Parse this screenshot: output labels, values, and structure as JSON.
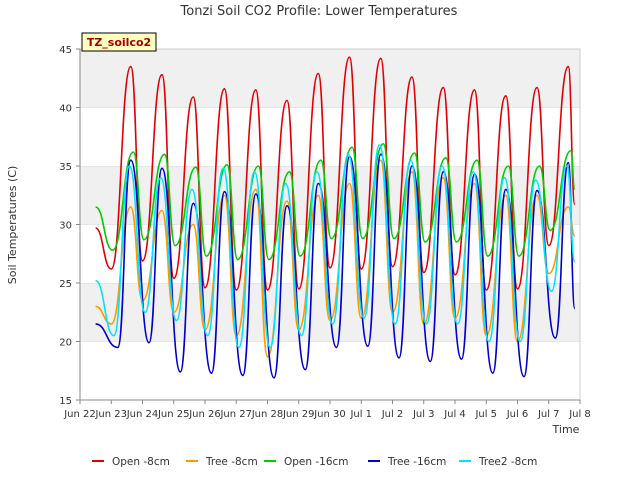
{
  "chart_data": {
    "type": "line",
    "title": "Tonzi Soil CO2 Profile: Lower Temperatures",
    "xlabel": "Time",
    "ylabel": "Soil Temperatures (C)",
    "site_label": "TZ_soilco2",
    "ylim": [
      15,
      45
    ],
    "xlim": [
      "Jun 22",
      "Jul 8"
    ],
    "yticks": [
      15,
      20,
      25,
      30,
      35,
      40,
      45
    ],
    "xticks": [
      "Jun 23",
      "Jun 24",
      "Jun 25",
      "Jun 26",
      "Jun 27",
      "Jun 28",
      "Jun 29",
      "Jun 30",
      "Jul 1",
      "Jul 2",
      "Jul 3",
      "Jul 4",
      "Jul 5",
      "Jul 6",
      "Jul 7",
      "Jul 8"
    ],
    "x_start_label": "Jun 22",
    "grid": "horizontal alternating bands",
    "legend_position": "bottom",
    "series": [
      {
        "name": "Open -8cm",
        "color": "#e00000",
        "x": [
          "2023-06-22 12:00",
          "2023-06-23 00:00",
          "2023-06-23 15:00",
          "2023-06-24 00:00",
          "2023-06-24 15:00",
          "2023-06-25 00:00",
          "2023-06-25 15:00",
          "2023-06-26 00:00",
          "2023-06-26 15:00",
          "2023-06-27 00:00",
          "2023-06-27 15:00",
          "2023-06-28 00:00",
          "2023-06-28 15:00",
          "2023-06-29 00:00",
          "2023-06-29 15:00",
          "2023-06-30 00:00",
          "2023-06-30 15:00",
          "2023-07-01 00:00",
          "2023-07-01 15:00",
          "2023-07-02 00:00",
          "2023-07-02 15:00",
          "2023-07-03 00:00",
          "2023-07-03 15:00",
          "2023-07-04 00:00",
          "2023-07-04 15:00",
          "2023-07-05 00:00",
          "2023-07-05 15:00",
          "2023-07-06 00:00",
          "2023-07-06 15:00",
          "2023-07-07 00:00",
          "2023-07-07 15:00",
          "2023-07-07 20:00"
        ],
        "y": [
          29.7,
          26.2,
          43.5,
          26.9,
          42.8,
          25.4,
          40.9,
          24.6,
          41.6,
          24.4,
          41.5,
          24.4,
          40.6,
          24.5,
          42.9,
          26.3,
          44.3,
          26.2,
          44.2,
          26.4,
          42.6,
          25.9,
          41.7,
          25.7,
          41.5,
          24.4,
          41.0,
          24.5,
          41.7,
          28.2,
          43.5,
          31.7
        ]
      },
      {
        "name": "Tree -8cm",
        "color": "#ff9900",
        "x": [
          "2023-06-22 12:00",
          "2023-06-23 00:00",
          "2023-06-23 15:00",
          "2023-06-24 00:00",
          "2023-06-24 15:00",
          "2023-06-25 00:00",
          "2023-06-25 15:00",
          "2023-06-26 00:00",
          "2023-06-26 15:00",
          "2023-06-27 00:00",
          "2023-06-27 15:00",
          "2023-06-28 00:00",
          "2023-06-28 15:00",
          "2023-06-29 00:00",
          "2023-06-29 15:00",
          "2023-06-30 00:00",
          "2023-06-30 15:00",
          "2023-07-01 00:00",
          "2023-07-01 15:00",
          "2023-07-02 00:00",
          "2023-07-02 15:00",
          "2023-07-03 00:00",
          "2023-07-03 15:00",
          "2023-07-04 00:00",
          "2023-07-04 15:00",
          "2023-07-05 00:00",
          "2023-07-05 15:00",
          "2023-07-06 00:00",
          "2023-07-06 15:00",
          "2023-07-07 00:00",
          "2023-07-07 15:00",
          "2023-07-07 20:00"
        ],
        "y": [
          23.0,
          21.5,
          31.5,
          23.5,
          31.2,
          22.5,
          30.0,
          21.0,
          32.5,
          20.5,
          33.0,
          18.7,
          32.0,
          21.0,
          32.5,
          21.8,
          33.5,
          22.0,
          35.5,
          22.5,
          34.5,
          21.5,
          34.0,
          22.0,
          33.5,
          20.5,
          32.5,
          20.0,
          32.5,
          25.8,
          31.5,
          29.0
        ]
      },
      {
        "name": "Open -16cm",
        "color": "#00cc00",
        "x": [
          "2023-06-22 12:00",
          "2023-06-23 01:00",
          "2023-06-23 17:00",
          "2023-06-24 01:00",
          "2023-06-24 17:00",
          "2023-06-25 01:00",
          "2023-06-25 17:00",
          "2023-06-26 01:00",
          "2023-06-26 17:00",
          "2023-06-27 01:00",
          "2023-06-27 17:00",
          "2023-06-28 01:00",
          "2023-06-28 17:00",
          "2023-06-29 01:00",
          "2023-06-29 17:00",
          "2023-06-30 01:00",
          "2023-06-30 17:00",
          "2023-07-01 01:00",
          "2023-07-01 17:00",
          "2023-07-02 01:00",
          "2023-07-02 17:00",
          "2023-07-03 01:00",
          "2023-07-03 17:00",
          "2023-07-04 01:00",
          "2023-07-04 17:00",
          "2023-07-05 01:00",
          "2023-07-05 17:00",
          "2023-07-06 01:00",
          "2023-07-06 17:00",
          "2023-07-07 01:00",
          "2023-07-07 17:00",
          "2023-07-07 20:00"
        ],
        "y": [
          31.5,
          27.8,
          36.2,
          28.7,
          36.0,
          28.2,
          34.9,
          27.3,
          35.1,
          27.0,
          35.0,
          27.0,
          34.5,
          27.3,
          35.5,
          28.8,
          36.6,
          28.8,
          36.9,
          28.8,
          36.1,
          28.5,
          35.7,
          28.5,
          35.5,
          27.3,
          35.0,
          27.3,
          35.0,
          29.5,
          36.3,
          33.0
        ]
      },
      {
        "name": "Tree -16cm",
        "color": "#0000cc",
        "x": [
          "2023-06-22 12:00",
          "2023-06-23 05:00",
          "2023-06-23 15:00",
          "2023-06-24 05:00",
          "2023-06-24 15:00",
          "2023-06-25 05:00",
          "2023-06-25 15:00",
          "2023-06-26 05:00",
          "2023-06-26 15:00",
          "2023-06-27 05:00",
          "2023-06-27 15:00",
          "2023-06-28 05:00",
          "2023-06-28 15:00",
          "2023-06-29 05:00",
          "2023-06-29 15:00",
          "2023-06-30 05:00",
          "2023-06-30 15:00",
          "2023-07-01 05:00",
          "2023-07-01 15:00",
          "2023-07-02 05:00",
          "2023-07-02 15:00",
          "2023-07-03 05:00",
          "2023-07-03 15:00",
          "2023-07-04 05:00",
          "2023-07-04 15:00",
          "2023-07-05 05:00",
          "2023-07-05 15:00",
          "2023-07-06 05:00",
          "2023-07-06 15:00",
          "2023-07-07 05:00",
          "2023-07-07 15:00",
          "2023-07-07 20:00"
        ],
        "y": [
          21.5,
          19.5,
          35.5,
          19.9,
          34.8,
          17.4,
          31.8,
          17.3,
          32.8,
          17.1,
          32.6,
          16.9,
          31.6,
          17.6,
          33.5,
          19.5,
          35.8,
          19.6,
          36.0,
          18.6,
          35.0,
          18.3,
          34.5,
          18.5,
          34.3,
          17.3,
          33.0,
          17.0,
          32.9,
          20.3,
          35.3,
          22.8
        ]
      },
      {
        "name": "Tree2 -8cm",
        "color": "#00e5ff",
        "x": [
          "2023-06-22 12:00",
          "2023-06-23 02:00",
          "2023-06-23 14:00",
          "2023-06-24 02:00",
          "2023-06-24 14:00",
          "2023-06-25 02:00",
          "2023-06-25 14:00",
          "2023-06-26 02:00",
          "2023-06-26 14:00",
          "2023-06-27 02:00",
          "2023-06-27 14:00",
          "2023-06-28 02:00",
          "2023-06-28 14:00",
          "2023-06-29 02:00",
          "2023-06-29 14:00",
          "2023-06-30 02:00",
          "2023-06-30 14:00",
          "2023-07-01 02:00",
          "2023-07-01 14:00",
          "2023-07-02 02:00",
          "2023-07-02 14:00",
          "2023-07-03 02:00",
          "2023-07-03 14:00",
          "2023-07-04 02:00",
          "2023-07-04 14:00",
          "2023-07-05 02:00",
          "2023-07-05 14:00",
          "2023-07-06 02:00",
          "2023-07-06 14:00",
          "2023-07-07 02:00",
          "2023-07-07 14:00",
          "2023-07-07 20:00"
        ],
        "y": [
          25.2,
          20.5,
          35.0,
          22.5,
          34.0,
          21.8,
          33.0,
          20.5,
          34.8,
          19.5,
          34.5,
          19.5,
          33.5,
          20.5,
          34.5,
          21.5,
          36.0,
          22.0,
          36.8,
          21.5,
          35.5,
          21.5,
          35.0,
          21.5,
          34.5,
          20.0,
          34.0,
          20.0,
          33.8,
          24.3,
          35.0,
          26.8
        ]
      }
    ]
  }
}
